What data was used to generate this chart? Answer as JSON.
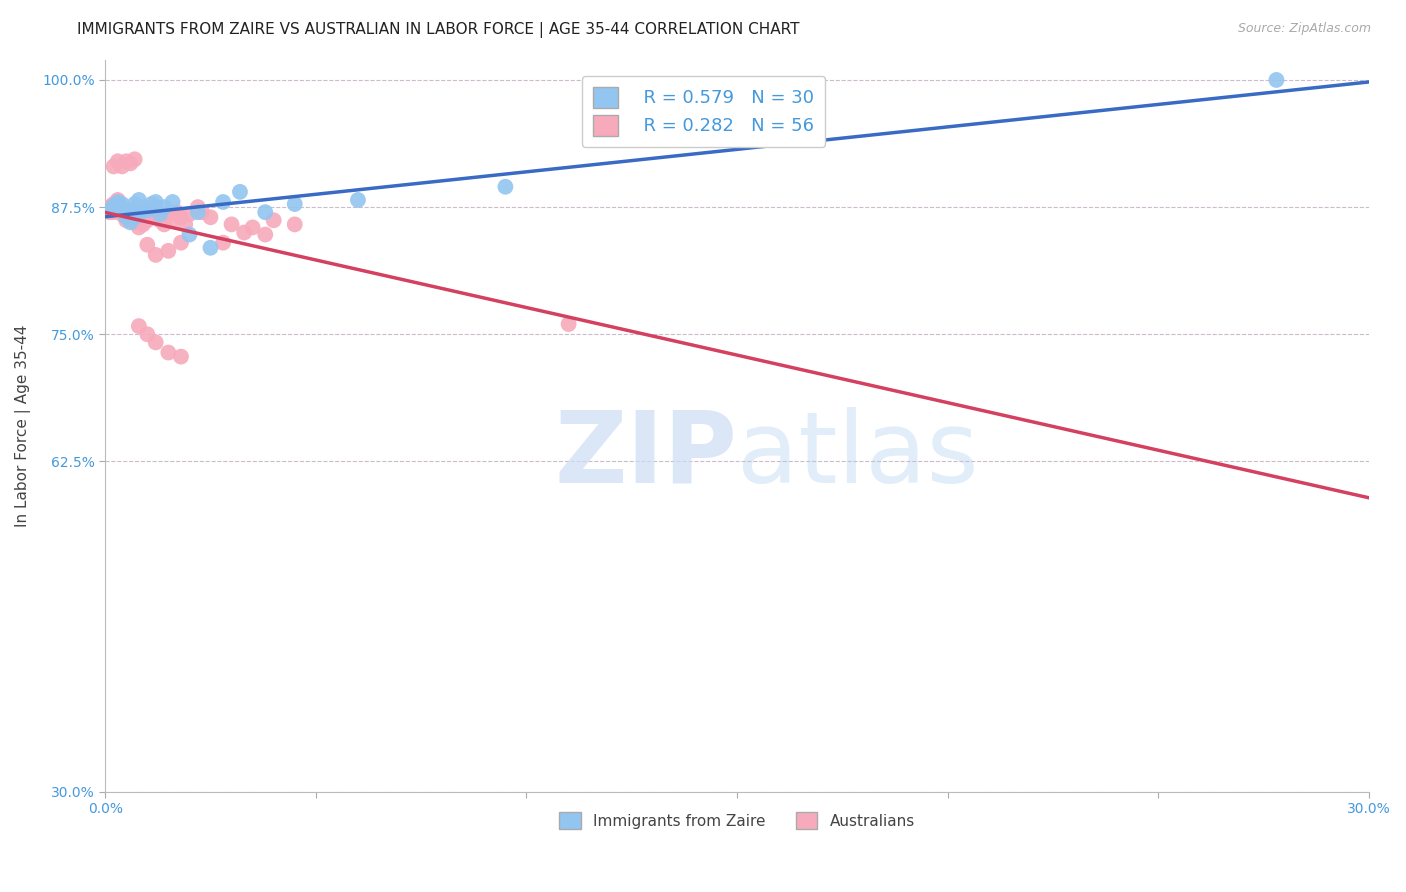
{
  "title": "IMMIGRANTS FROM ZAIRE VS AUSTRALIAN IN LABOR FORCE | AGE 35-44 CORRELATION CHART",
  "source": "Source: ZipAtlas.com",
  "ylabel": "In Labor Force | Age 35-44",
  "xlim": [
    0.0,
    0.3
  ],
  "ylim": [
    0.3,
    1.02
  ],
  "xticks": [
    0.0,
    0.05,
    0.1,
    0.15,
    0.2,
    0.25,
    0.3
  ],
  "xticklabels": [
    "0.0%",
    "",
    "",
    "",
    "",
    "",
    "30.0%"
  ],
  "yticks": [
    0.3,
    0.625,
    0.75,
    0.875,
    1.0
  ],
  "yticklabels": [
    "30.0%",
    "62.5%",
    "75.0%",
    "87.5%",
    "100.0%"
  ],
  "blue_color": "#92C5F0",
  "pink_color": "#F7AABB",
  "blue_line_color": "#3A6BC4",
  "pink_line_color": "#D44060",
  "text_color": "#4499DD",
  "legend_label_blue": "Immigrants from Zaire",
  "legend_label_pink": "Australians",
  "legend_R_blue": "R = 0.579",
  "legend_N_blue": "N = 30",
  "legend_R_pink": "R = 0.282",
  "legend_N_pink": "N = 56",
  "blue_x": [
    0.001,
    0.002,
    0.003,
    0.003,
    0.004,
    0.005,
    0.005,
    0.006,
    0.006,
    0.007,
    0.007,
    0.008,
    0.008,
    0.009,
    0.01,
    0.011,
    0.012,
    0.013,
    0.014,
    0.016,
    0.02,
    0.022,
    0.025,
    0.028,
    0.032,
    0.038,
    0.045,
    0.06,
    0.095,
    0.278
  ],
  "blue_y": [
    0.872,
    0.876,
    0.88,
    0.873,
    0.878,
    0.865,
    0.872,
    0.86,
    0.87,
    0.865,
    0.878,
    0.868,
    0.882,
    0.875,
    0.872,
    0.878,
    0.88,
    0.868,
    0.875,
    0.88,
    0.848,
    0.87,
    0.835,
    0.88,
    0.89,
    0.87,
    0.878,
    0.882,
    0.895,
    1.0
  ],
  "pink_x": [
    0.001,
    0.001,
    0.002,
    0.002,
    0.003,
    0.003,
    0.004,
    0.004,
    0.005,
    0.005,
    0.006,
    0.006,
    0.007,
    0.007,
    0.008,
    0.008,
    0.009,
    0.009,
    0.01,
    0.01,
    0.011,
    0.012,
    0.013,
    0.014,
    0.015,
    0.016,
    0.017,
    0.018,
    0.019,
    0.02,
    0.022,
    0.023,
    0.025,
    0.028,
    0.03,
    0.033,
    0.035,
    0.038,
    0.04,
    0.045,
    0.002,
    0.003,
    0.004,
    0.005,
    0.006,
    0.007,
    0.01,
    0.012,
    0.015,
    0.018,
    0.008,
    0.01,
    0.012,
    0.015,
    0.018,
    0.11
  ],
  "pink_y": [
    0.875,
    0.87,
    0.878,
    0.87,
    0.877,
    0.882,
    0.868,
    0.875,
    0.862,
    0.87,
    0.865,
    0.872,
    0.86,
    0.868,
    0.855,
    0.865,
    0.868,
    0.858,
    0.862,
    0.872,
    0.865,
    0.875,
    0.862,
    0.858,
    0.868,
    0.862,
    0.87,
    0.865,
    0.858,
    0.868,
    0.875,
    0.87,
    0.865,
    0.84,
    0.858,
    0.85,
    0.855,
    0.848,
    0.862,
    0.858,
    0.915,
    0.92,
    0.915,
    0.92,
    0.918,
    0.922,
    0.838,
    0.828,
    0.832,
    0.84,
    0.758,
    0.75,
    0.742,
    0.732,
    0.728,
    0.76
  ],
  "background_color": "#FFFFFF",
  "title_fontsize": 11,
  "axis_label_fontsize": 11,
  "tick_fontsize": 10,
  "legend_fontsize": 13
}
